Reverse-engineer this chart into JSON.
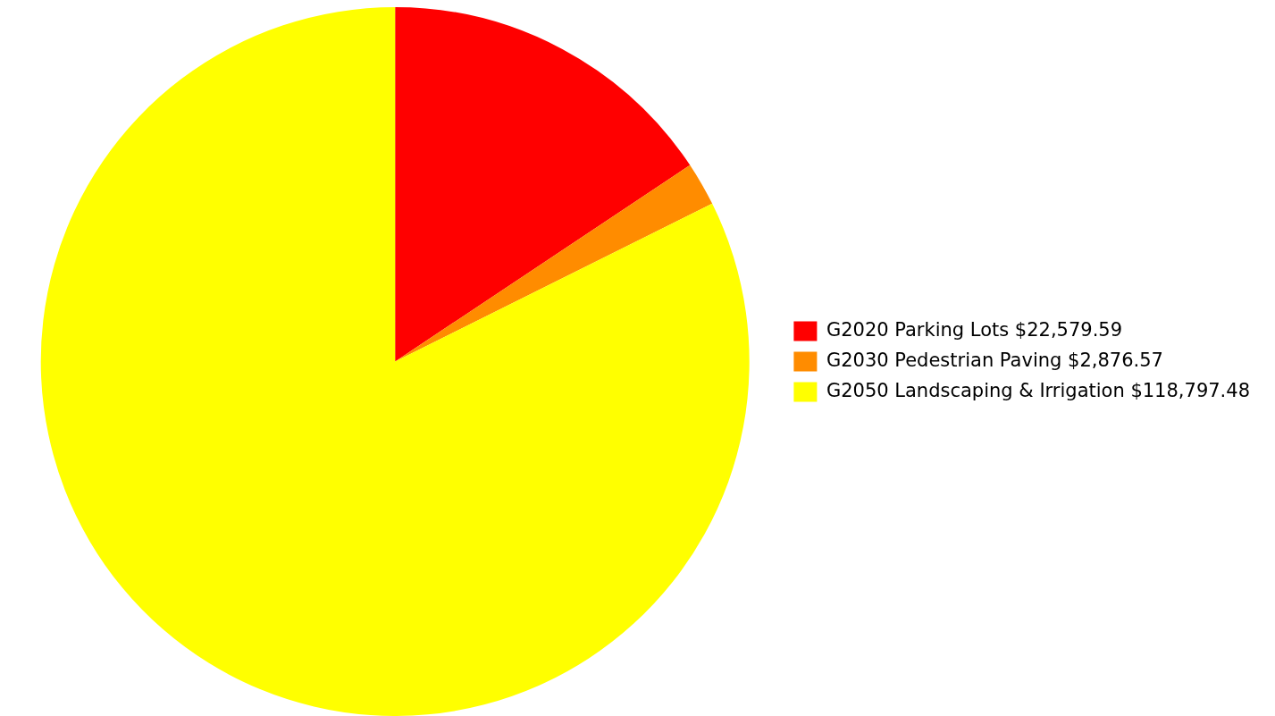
{
  "chart_data": {
    "type": "pie",
    "categories": [
      "G2020 Parking Lots $22,579.59",
      "G2030 Pedestrian Paving $2,876.57",
      "G2050 Landscaping & Irrigation $118,797.48"
    ],
    "values": [
      22579.59,
      2876.57,
      118797.48
    ],
    "colors": [
      "#ff0000",
      "#ff8c00",
      "#ffff00"
    ],
    "legend": "right"
  }
}
